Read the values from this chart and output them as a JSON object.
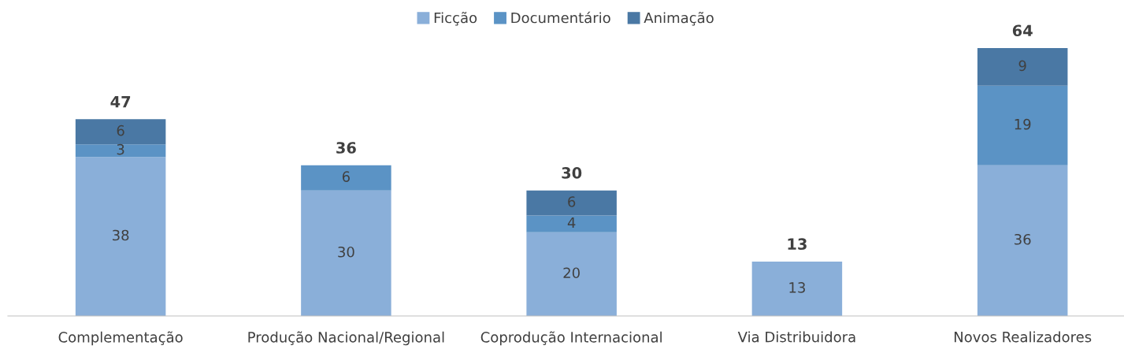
{
  "chart_data": {
    "type": "bar",
    "stacked": true,
    "categories": [
      "Complementação",
      "Produção Nacional/Regional",
      "Coprodução Internacional",
      "Via Distribuidora",
      "Novos Realizadores"
    ],
    "series": [
      {
        "name": "Ficção",
        "color": "#8aafd9",
        "values": [
          38,
          30,
          20,
          13,
          36
        ]
      },
      {
        "name": "Documentário",
        "color": "#5b93c5",
        "values": [
          3,
          6,
          4,
          null,
          19
        ]
      },
      {
        "name": "Animação",
        "color": "#4a78a4",
        "values": [
          6,
          null,
          6,
          null,
          9
        ]
      }
    ],
    "totals": [
      "47",
      "36",
      "30",
      "13",
      "64"
    ],
    "data_labels": true,
    "legend": "top",
    "grid": false
  }
}
